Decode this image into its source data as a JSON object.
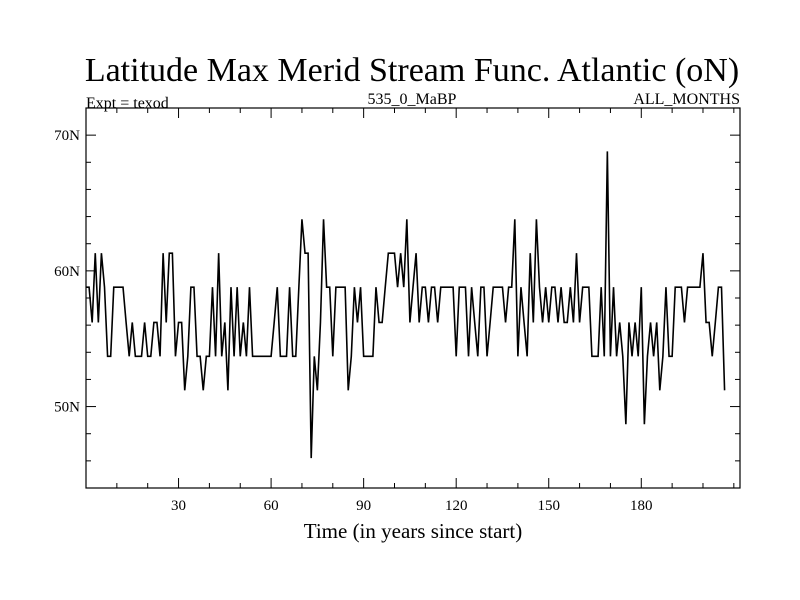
{
  "chart_data": {
    "type": "line",
    "title": "Latitude Max Merid Stream Func. Atlantic (oN)",
    "subtitle_left": "Expt = texod",
    "subtitle_center": "535_0_MaBP",
    "subtitle_right": "ALL_MONTHS",
    "xlabel": "Time (in years since start)",
    "ylabel": "",
    "xlim": [
      0,
      212
    ],
    "ylim": [
      44,
      72
    ],
    "x_ticks": [
      {
        "value": 30,
        "label": "30"
      },
      {
        "value": 60,
        "label": "60"
      },
      {
        "value": 90,
        "label": "90"
      },
      {
        "value": 120,
        "label": "120"
      },
      {
        "value": 150,
        "label": "150"
      },
      {
        "value": 180,
        "label": "180"
      }
    ],
    "y_ticks": [
      {
        "value": 50,
        "label": "50N"
      },
      {
        "value": 60,
        "label": "60N"
      },
      {
        "value": 70,
        "label": "70N"
      }
    ],
    "series": [
      {
        "name": "Latitude Max Merid Stream Func.",
        "color": "#000000",
        "x_start": 0,
        "x_step": 1,
        "values": [
          58.8,
          58.8,
          56.2,
          61.3,
          56.2,
          61.3,
          58.8,
          53.7,
          53.7,
          58.8,
          58.8,
          58.8,
          58.8,
          56.2,
          53.7,
          56.2,
          53.7,
          53.7,
          53.7,
          56.2,
          53.7,
          53.7,
          56.2,
          56.2,
          53.7,
          61.3,
          56.2,
          61.3,
          61.3,
          53.7,
          56.2,
          56.2,
          51.2,
          53.7,
          58.8,
          58.8,
          53.7,
          53.7,
          51.2,
          53.7,
          53.7,
          58.8,
          53.7,
          61.3,
          53.7,
          56.2,
          51.2,
          58.8,
          53.7,
          58.8,
          53.7,
          56.2,
          53.7,
          58.8,
          53.7,
          53.7,
          53.7,
          53.7,
          53.7,
          53.7,
          53.7,
          56.2,
          58.8,
          53.7,
          53.7,
          53.7,
          58.8,
          53.7,
          53.7,
          58.8,
          63.8,
          61.3,
          61.3,
          46.2,
          53.7,
          51.2,
          56.2,
          63.8,
          58.8,
          58.8,
          53.7,
          58.8,
          58.8,
          58.8,
          58.8,
          51.2,
          53.7,
          58.8,
          56.2,
          58.8,
          53.7,
          53.7,
          53.7,
          53.7,
          58.8,
          56.2,
          56.2,
          58.8,
          61.3,
          61.3,
          61.3,
          58.8,
          61.3,
          58.8,
          63.8,
          56.2,
          58.8,
          61.3,
          56.2,
          58.8,
          58.8,
          56.2,
          58.8,
          58.8,
          56.2,
          58.8,
          58.8,
          58.8,
          58.8,
          58.8,
          53.7,
          58.8,
          58.8,
          58.8,
          53.7,
          58.8,
          56.2,
          53.7,
          58.8,
          58.8,
          53.7,
          56.2,
          58.8,
          58.8,
          58.8,
          58.8,
          56.2,
          58.8,
          58.8,
          63.8,
          53.7,
          58.8,
          56.2,
          53.7,
          61.3,
          56.2,
          63.8,
          58.8,
          56.2,
          58.8,
          56.2,
          58.8,
          58.8,
          56.2,
          58.8,
          56.2,
          56.2,
          58.8,
          56.2,
          61.3,
          56.2,
          58.8,
          58.8,
          58.8,
          53.7,
          53.7,
          53.7,
          58.8,
          53.7,
          68.8,
          53.7,
          58.8,
          53.7,
          56.2,
          53.7,
          48.7,
          56.2,
          53.7,
          56.2,
          53.7,
          58.8,
          48.7,
          53.7,
          56.2,
          53.7,
          56.2,
          51.2,
          53.7,
          58.8,
          53.7,
          53.7,
          58.8,
          58.8,
          58.8,
          56.2,
          58.8,
          58.8,
          58.8,
          58.8,
          58.8,
          61.3,
          56.2,
          56.2,
          53.7,
          56.2,
          58.8,
          58.8,
          51.2
        ]
      }
    ]
  }
}
